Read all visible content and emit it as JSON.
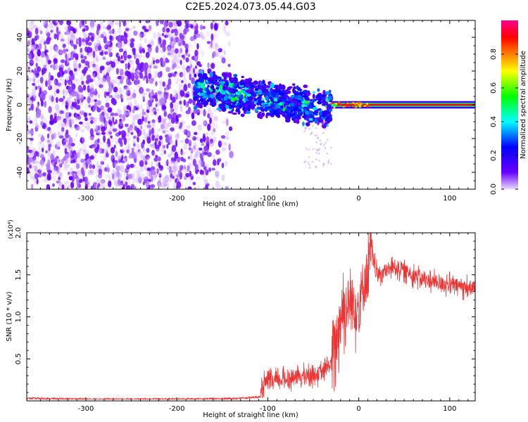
{
  "title": "C2E5.2024.073.05.44.G03",
  "chart_data": [
    {
      "type": "heatmap",
      "xlabel": "Height of straight line (km)",
      "ylabel": "Frequency (Hz)",
      "xlim": [
        -365,
        128
      ],
      "ylim": [
        -50,
        50
      ],
      "xticks": [
        -300,
        -200,
        -100,
        0,
        100
      ],
      "yticks": [
        -40,
        -20,
        0,
        20,
        40
      ],
      "colorbar": {
        "label": "Normalized spectral amplitude",
        "range": [
          0.0,
          1.0
        ],
        "ticks": [
          0.0,
          0.2,
          0.4,
          0.6,
          0.8
        ],
        "colormap": [
          "#e9d7ff",
          "#6a00ff",
          "#0000ff",
          "#00ffff",
          "#00ff00",
          "#ffff00",
          "#ff8000",
          "#ff0000",
          "#ff0090"
        ]
      },
      "regions": [
        {
          "x_range": [
            -365,
            -140
          ],
          "freq_spread": [
            -50,
            50
          ],
          "amplitude": [
            0.0,
            0.15
          ]
        },
        {
          "x_range": [
            -180,
            -30
          ],
          "freq_center": [
            10,
            -3
          ],
          "freq_spread": [
            -10,
            22
          ],
          "amplitude": [
            0.1,
            0.5
          ]
        },
        {
          "x_range": [
            -30,
            128
          ],
          "freq_center": 0,
          "freq_spread": [
            -2,
            2
          ],
          "amplitude": [
            0.7,
            1.0
          ]
        }
      ]
    },
    {
      "type": "line",
      "xlabel": "Height of straight line (km)",
      "ylabel": "SNR (10 * v/v)",
      "y_multiplier": "(x10⁴)",
      "xlim": [
        -365,
        128
      ],
      "ylim": [
        0,
        2.0
      ],
      "xticks": [
        -300,
        -200,
        -100,
        0,
        100
      ],
      "yticks": [
        0.5,
        1.0,
        1.5,
        2.0
      ],
      "series": [
        {
          "color": "#ee3333",
          "x": [
            -365,
            -300,
            -200,
            -130,
            -108,
            -105,
            -100,
            -80,
            -60,
            -40,
            -30,
            -22,
            -18,
            -12,
            -5,
            0,
            5,
            10,
            13,
            20,
            30,
            40,
            50,
            60,
            70,
            80,
            90,
            100,
            110,
            120,
            128
          ],
          "y": [
            0.03,
            0.02,
            0.02,
            0.03,
            0.05,
            0.2,
            0.22,
            0.26,
            0.3,
            0.33,
            0.45,
            0.9,
            1.1,
            1.15,
            1.15,
            1.1,
            1.4,
            1.5,
            1.8,
            1.5,
            1.55,
            1.6,
            1.55,
            1.5,
            1.45,
            1.42,
            1.4,
            1.38,
            1.37,
            1.35,
            1.33
          ]
        }
      ]
    }
  ]
}
